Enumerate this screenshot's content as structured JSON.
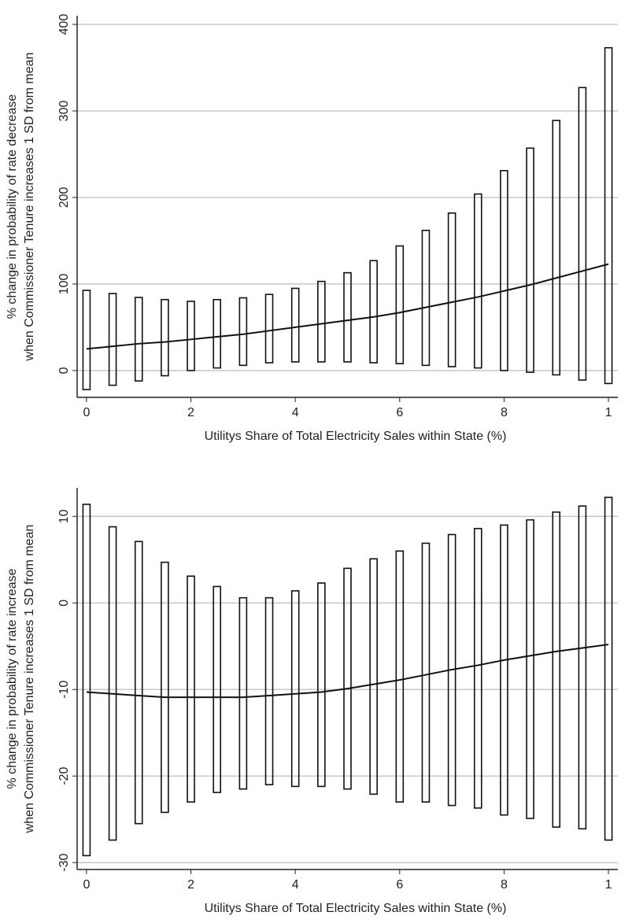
{
  "chart_data": [
    {
      "type": "line",
      "ylabel": [
        "% change in probability of rate decrease",
        "when Commissioner Tenure increases 1 SD from mean"
      ],
      "xlabel": "Utilitys Share of Total Electricity Sales within State (%)",
      "x": [
        0,
        0.05,
        0.1,
        0.15,
        0.2,
        0.25,
        0.3,
        0.35,
        0.4,
        0.45,
        0.5,
        0.55,
        0.6,
        0.65,
        0.7,
        0.75,
        0.8,
        0.85,
        0.9,
        0.95,
        1
      ],
      "values": [
        25,
        28,
        31,
        33,
        36,
        39,
        42,
        46,
        50,
        54,
        58,
        62,
        67,
        73,
        79,
        85,
        92,
        99,
        107,
        115,
        123
      ],
      "lower": [
        -22,
        -17,
        -12,
        -6,
        0,
        3,
        6,
        9,
        10,
        10,
        10,
        9,
        8,
        6,
        4.5,
        3,
        0,
        -2,
        -5,
        -11,
        -15
      ],
      "upper": [
        92.7,
        89,
        84.5,
        82,
        80,
        82,
        84,
        88,
        95,
        103,
        113,
        127,
        144,
        162,
        182,
        204,
        231,
        257,
        289,
        327,
        373
      ],
      "color": "#111111",
      "grid_color": "#c8c8c8",
      "xlim": [
        -0.018,
        1.018
      ],
      "ylim": [
        -31,
        410
      ],
      "xticks": [
        0,
        {
          "value": 0.2,
          "label": "2"
        },
        {
          "value": 0.4,
          "label": "4"
        },
        {
          "value": 0.6,
          "label": "6"
        },
        {
          "value": 0.8,
          "label": "8"
        },
        1
      ],
      "yticks": [
        0,
        100,
        200,
        300,
        400
      ],
      "grid": true
    },
    {
      "type": "line",
      "ylabel": [
        "% change in probability of rate increase",
        "when Commissioner Tenure increases 1 SD from mean"
      ],
      "xlabel": "Utilitys Share of Total Electricity Sales within State (%)",
      "x": [
        0,
        0.05,
        0.1,
        0.15,
        0.2,
        0.25,
        0.3,
        0.35,
        0.4,
        0.45,
        0.5,
        0.55,
        0.6,
        0.65,
        0.7,
        0.75,
        0.8,
        0.85,
        0.9,
        0.95,
        1
      ],
      "values": [
        -10.3,
        -10.5,
        -10.7,
        -10.9,
        -10.9,
        -10.9,
        -10.9,
        -10.7,
        -10.5,
        -10.3,
        -9.9,
        -9.4,
        -8.9,
        -8.3,
        -7.7,
        -7.2,
        -6.6,
        -6.1,
        -5.6,
        -5.2,
        -4.8
      ],
      "lower": [
        -29.2,
        -27.4,
        -25.5,
        -24.2,
        -23,
        -21.9,
        -21.5,
        -21,
        -21.2,
        -21.2,
        -21.5,
        -22.1,
        -23,
        -23,
        -23.4,
        -23.7,
        -24.5,
        -24.9,
        -25.9,
        -26.1,
        -27.4
      ],
      "upper": [
        11.4,
        8.8,
        7.1,
        4.7,
        3.1,
        1.9,
        0.6,
        0.6,
        1.4,
        2.3,
        4,
        5.1,
        6,
        6.9,
        7.9,
        8.6,
        9,
        9.6,
        10.5,
        11.2,
        12.2
      ],
      "color": "#111111",
      "grid_color": "#c8c8c8",
      "xlim": [
        -0.018,
        1.018
      ],
      "ylim": [
        -30.8,
        13.3
      ],
      "xticks": [
        0,
        {
          "value": 0.2,
          "label": "2"
        },
        {
          "value": 0.4,
          "label": "4"
        },
        {
          "value": 0.6,
          "label": "6"
        },
        {
          "value": 0.8,
          "label": "8"
        },
        1
      ],
      "yticks": [
        -30,
        -20,
        -10,
        0,
        10
      ],
      "grid": true
    }
  ]
}
